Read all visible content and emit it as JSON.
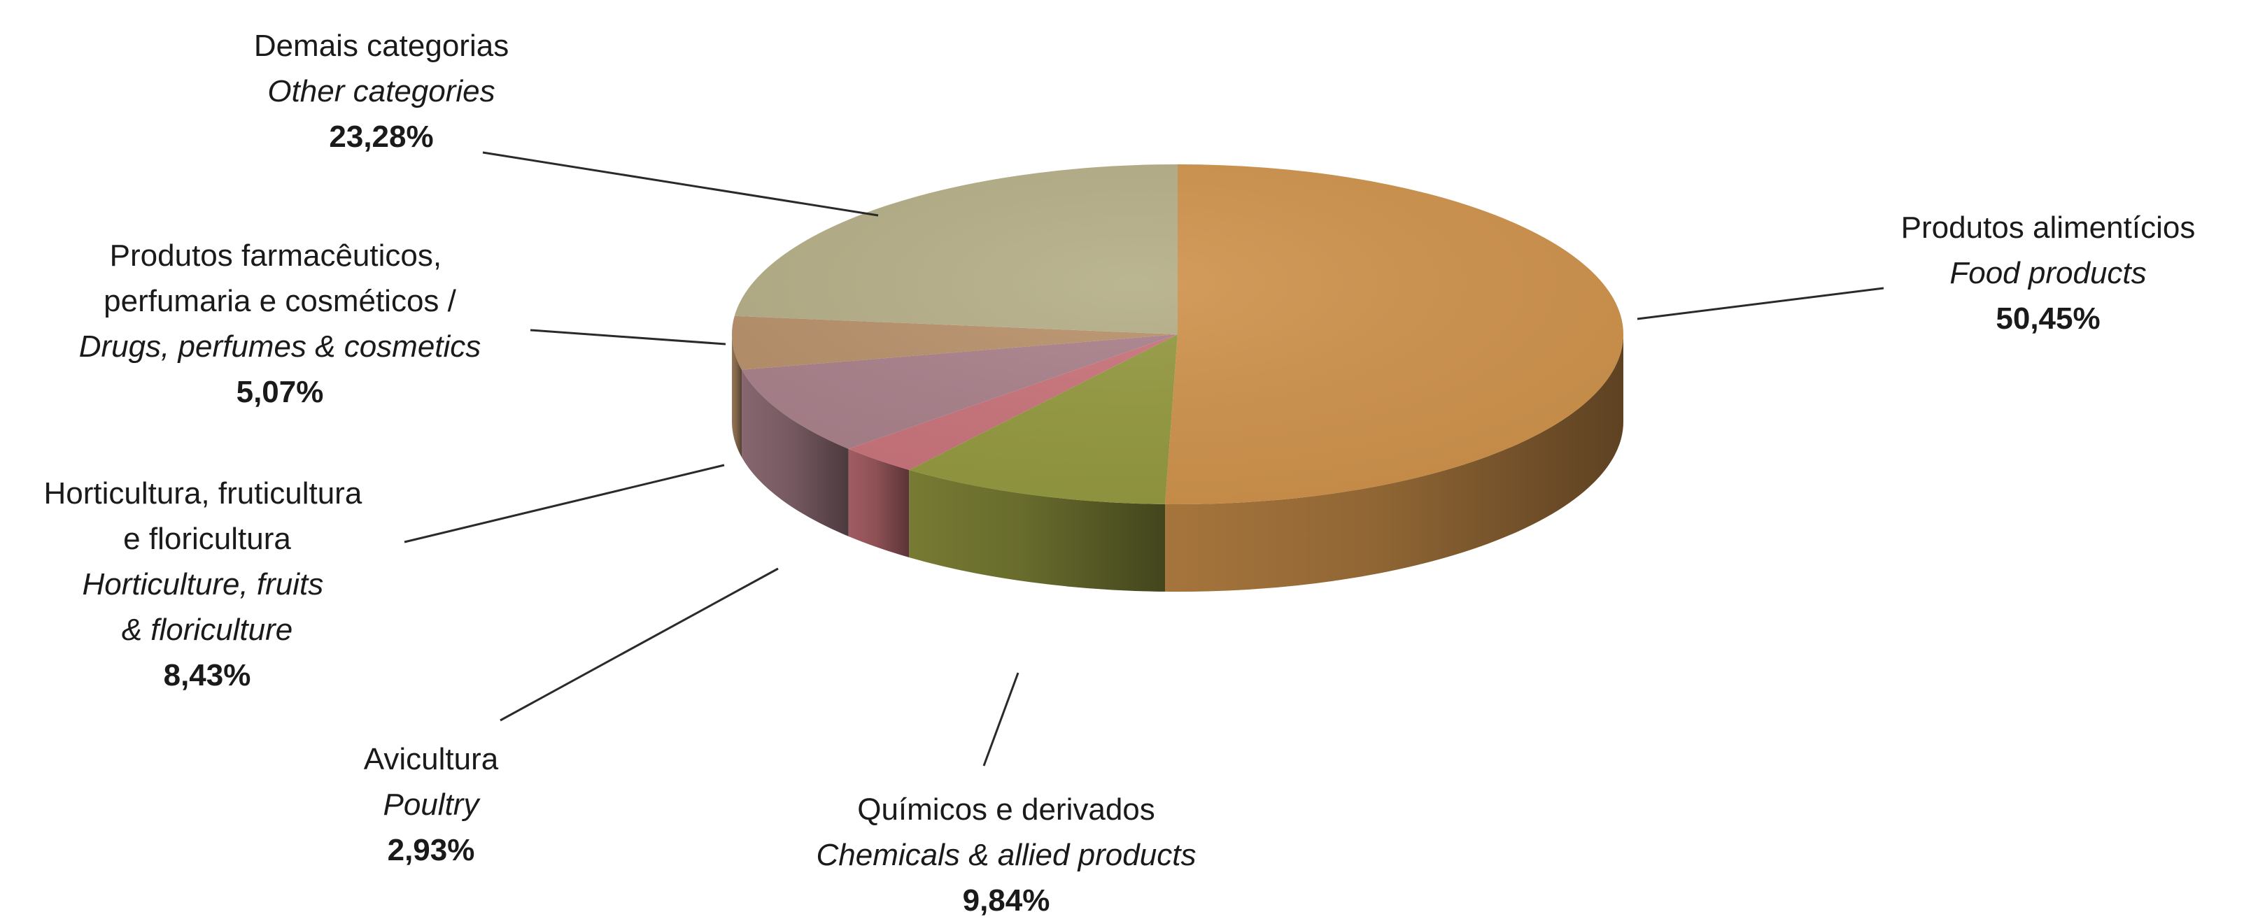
{
  "chart_data": {
    "type": "pie",
    "title": "",
    "slices": [
      {
        "pt": "Produtos alimentícios",
        "en": "Food products",
        "value": 50.45,
        "label": "50,45%",
        "color": "#cf924b"
      },
      {
        "pt": "Químicos e derivados",
        "en": "Chemicals &  allied products",
        "value": 9.84,
        "label": "9,84%",
        "color": "#94993f"
      },
      {
        "pt": "Avicultura",
        "en": "Poultry",
        "value": 2.93,
        "label": "2,93%",
        "color": "#c9737a"
      },
      {
        "pt": "Horticultura, fruticultura e floricultura",
        "en": "Horticulture, fruits & floriculture",
        "value": 8.43,
        "label": "8,43%",
        "color": "#a9808a"
      },
      {
        "pt": "Produtos farmacêuticos, perfumaria e cosméticos /",
        "en": "Drugs, perfumes & cosmetics",
        "value": 5.07,
        "label": "5,07%",
        "color": "#b8906a"
      },
      {
        "pt": "Demais categorias",
        "en": "Other categories",
        "value": 23.28,
        "label": "23,28%",
        "color": "#b4ae86"
      }
    ]
  }
}
